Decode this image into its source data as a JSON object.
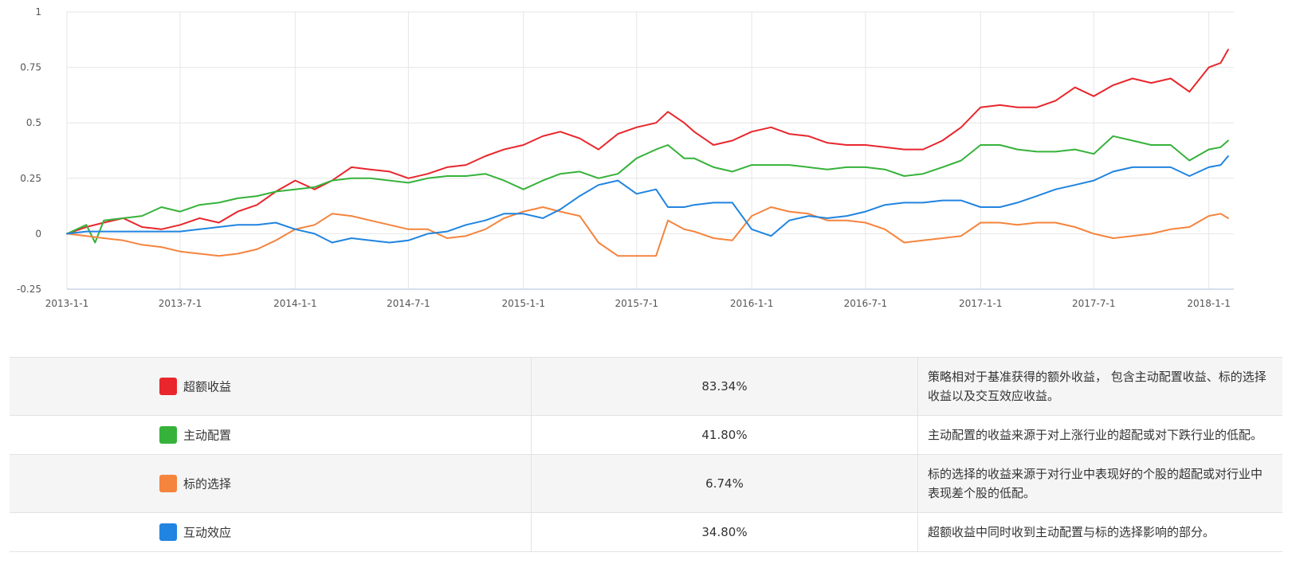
{
  "chart_data": {
    "type": "line",
    "x_ticks": [
      "2013-1-1",
      "2013-7-1",
      "2014-1-1",
      "2014-7-1",
      "2015-1-1",
      "2015-7-1",
      "2016-1-1",
      "2016-7-1",
      "2017-1-1",
      "2017-7-1",
      "2018-1-1"
    ],
    "y_ticks": [
      "1",
      "0.75",
      "0.5",
      "0.25",
      "0",
      "-0.25"
    ],
    "ylim": [
      -0.25,
      1
    ],
    "xlim": [
      "2013-01-01",
      "2018-02-10"
    ],
    "grid": true,
    "series": [
      {
        "name": "超额收益",
        "color": "#e8262c",
        "points": [
          [
            "2013-01-01",
            0
          ],
          [
            "2013-02-01",
            0.03
          ],
          [
            "2013-03-01",
            0.05
          ],
          [
            "2013-04-01",
            0.07
          ],
          [
            "2013-05-01",
            0.03
          ],
          [
            "2013-06-01",
            0.02
          ],
          [
            "2013-07-01",
            0.04
          ],
          [
            "2013-08-01",
            0.07
          ],
          [
            "2013-09-01",
            0.05
          ],
          [
            "2013-10-01",
            0.1
          ],
          [
            "2013-11-01",
            0.13
          ],
          [
            "2013-12-01",
            0.19
          ],
          [
            "2014-01-01",
            0.24
          ],
          [
            "2014-02-01",
            0.2
          ],
          [
            "2014-03-01",
            0.24
          ],
          [
            "2014-04-01",
            0.3
          ],
          [
            "2014-05-01",
            0.29
          ],
          [
            "2014-06-01",
            0.28
          ],
          [
            "2014-07-01",
            0.25
          ],
          [
            "2014-08-01",
            0.27
          ],
          [
            "2014-09-01",
            0.3
          ],
          [
            "2014-10-01",
            0.31
          ],
          [
            "2014-11-01",
            0.35
          ],
          [
            "2014-12-01",
            0.38
          ],
          [
            "2015-01-01",
            0.4
          ],
          [
            "2015-02-01",
            0.44
          ],
          [
            "2015-03-01",
            0.46
          ],
          [
            "2015-04-01",
            0.43
          ],
          [
            "2015-05-01",
            0.38
          ],
          [
            "2015-06-01",
            0.45
          ],
          [
            "2015-07-01",
            0.48
          ],
          [
            "2015-08-01",
            0.5
          ],
          [
            "2015-08-20",
            0.55
          ],
          [
            "2015-09-15",
            0.5
          ],
          [
            "2015-10-01",
            0.46
          ],
          [
            "2015-11-01",
            0.4
          ],
          [
            "2015-12-01",
            0.42
          ],
          [
            "2016-01-01",
            0.46
          ],
          [
            "2016-02-01",
            0.48
          ],
          [
            "2016-03-01",
            0.45
          ],
          [
            "2016-04-01",
            0.44
          ],
          [
            "2016-05-01",
            0.41
          ],
          [
            "2016-06-01",
            0.4
          ],
          [
            "2016-07-01",
            0.4
          ],
          [
            "2016-08-01",
            0.39
          ],
          [
            "2016-09-01",
            0.38
          ],
          [
            "2016-10-01",
            0.38
          ],
          [
            "2016-11-01",
            0.42
          ],
          [
            "2016-12-01",
            0.48
          ],
          [
            "2017-01-01",
            0.57
          ],
          [
            "2017-02-01",
            0.58
          ],
          [
            "2017-03-01",
            0.57
          ],
          [
            "2017-04-01",
            0.57
          ],
          [
            "2017-05-01",
            0.6
          ],
          [
            "2017-06-01",
            0.66
          ],
          [
            "2017-07-01",
            0.62
          ],
          [
            "2017-08-01",
            0.67
          ],
          [
            "2017-09-01",
            0.7
          ],
          [
            "2017-10-01",
            0.68
          ],
          [
            "2017-11-01",
            0.7
          ],
          [
            "2017-12-01",
            0.64
          ],
          [
            "2018-01-01",
            0.75
          ],
          [
            "2018-01-20",
            0.77
          ],
          [
            "2018-02-01",
            0.83
          ]
        ]
      },
      {
        "name": "主动配置",
        "color": "#36b23a",
        "points": [
          [
            "2013-01-01",
            0
          ],
          [
            "2013-02-01",
            0.04
          ],
          [
            "2013-02-15",
            -0.04
          ],
          [
            "2013-03-01",
            0.06
          ],
          [
            "2013-04-01",
            0.07
          ],
          [
            "2013-05-01",
            0.08
          ],
          [
            "2013-06-01",
            0.12
          ],
          [
            "2013-07-01",
            0.1
          ],
          [
            "2013-08-01",
            0.13
          ],
          [
            "2013-09-01",
            0.14
          ],
          [
            "2013-10-01",
            0.16
          ],
          [
            "2013-11-01",
            0.17
          ],
          [
            "2013-12-01",
            0.19
          ],
          [
            "2014-01-01",
            0.2
          ],
          [
            "2014-02-01",
            0.21
          ],
          [
            "2014-03-01",
            0.24
          ],
          [
            "2014-04-01",
            0.25
          ],
          [
            "2014-05-01",
            0.25
          ],
          [
            "2014-06-01",
            0.24
          ],
          [
            "2014-07-01",
            0.23
          ],
          [
            "2014-08-01",
            0.25
          ],
          [
            "2014-09-01",
            0.26
          ],
          [
            "2014-10-01",
            0.26
          ],
          [
            "2014-11-01",
            0.27
          ],
          [
            "2014-12-01",
            0.24
          ],
          [
            "2015-01-01",
            0.2
          ],
          [
            "2015-02-01",
            0.24
          ],
          [
            "2015-03-01",
            0.27
          ],
          [
            "2015-04-01",
            0.28
          ],
          [
            "2015-05-01",
            0.25
          ],
          [
            "2015-06-01",
            0.27
          ],
          [
            "2015-07-01",
            0.34
          ],
          [
            "2015-08-01",
            0.38
          ],
          [
            "2015-08-20",
            0.4
          ],
          [
            "2015-09-15",
            0.34
          ],
          [
            "2015-10-01",
            0.34
          ],
          [
            "2015-11-01",
            0.3
          ],
          [
            "2015-12-01",
            0.28
          ],
          [
            "2016-01-01",
            0.31
          ],
          [
            "2016-02-01",
            0.31
          ],
          [
            "2016-03-01",
            0.31
          ],
          [
            "2016-04-01",
            0.3
          ],
          [
            "2016-05-01",
            0.29
          ],
          [
            "2016-06-01",
            0.3
          ],
          [
            "2016-07-01",
            0.3
          ],
          [
            "2016-08-01",
            0.29
          ],
          [
            "2016-09-01",
            0.26
          ],
          [
            "2016-10-01",
            0.27
          ],
          [
            "2016-11-01",
            0.3
          ],
          [
            "2016-12-01",
            0.33
          ],
          [
            "2017-01-01",
            0.4
          ],
          [
            "2017-02-01",
            0.4
          ],
          [
            "2017-03-01",
            0.38
          ],
          [
            "2017-04-01",
            0.37
          ],
          [
            "2017-05-01",
            0.37
          ],
          [
            "2017-06-01",
            0.38
          ],
          [
            "2017-07-01",
            0.36
          ],
          [
            "2017-08-01",
            0.44
          ],
          [
            "2017-09-01",
            0.42
          ],
          [
            "2017-10-01",
            0.4
          ],
          [
            "2017-11-01",
            0.4
          ],
          [
            "2017-12-01",
            0.33
          ],
          [
            "2018-01-01",
            0.38
          ],
          [
            "2018-01-20",
            0.39
          ],
          [
            "2018-02-01",
            0.42
          ]
        ]
      },
      {
        "name": "标的选择",
        "color": "#f5843d",
        "points": [
          [
            "2013-01-01",
            0
          ],
          [
            "2013-02-01",
            -0.01
          ],
          [
            "2013-03-01",
            -0.02
          ],
          [
            "2013-04-01",
            -0.03
          ],
          [
            "2013-05-01",
            -0.05
          ],
          [
            "2013-06-01",
            -0.06
          ],
          [
            "2013-07-01",
            -0.08
          ],
          [
            "2013-08-01",
            -0.09
          ],
          [
            "2013-09-01",
            -0.1
          ],
          [
            "2013-10-01",
            -0.09
          ],
          [
            "2013-11-01",
            -0.07
          ],
          [
            "2013-12-01",
            -0.03
          ],
          [
            "2014-01-01",
            0.02
          ],
          [
            "2014-02-01",
            0.04
          ],
          [
            "2014-03-01",
            0.09
          ],
          [
            "2014-04-01",
            0.08
          ],
          [
            "2014-05-01",
            0.06
          ],
          [
            "2014-06-01",
            0.04
          ],
          [
            "2014-07-01",
            0.02
          ],
          [
            "2014-08-01",
            0.02
          ],
          [
            "2014-09-01",
            -0.02
          ],
          [
            "2014-10-01",
            -0.01
          ],
          [
            "2014-11-01",
            0.02
          ],
          [
            "2014-12-01",
            0.07
          ],
          [
            "2015-01-01",
            0.1
          ],
          [
            "2015-02-01",
            0.12
          ],
          [
            "2015-03-01",
            0.1
          ],
          [
            "2015-04-01",
            0.08
          ],
          [
            "2015-05-01",
            -0.04
          ],
          [
            "2015-06-01",
            -0.1
          ],
          [
            "2015-07-01",
            -0.1
          ],
          [
            "2015-08-01",
            -0.1
          ],
          [
            "2015-08-20",
            0.06
          ],
          [
            "2015-09-15",
            0.02
          ],
          [
            "2015-10-01",
            0.01
          ],
          [
            "2015-11-01",
            -0.02
          ],
          [
            "2015-12-01",
            -0.03
          ],
          [
            "2016-01-01",
            0.08
          ],
          [
            "2016-02-01",
            0.12
          ],
          [
            "2016-03-01",
            0.1
          ],
          [
            "2016-04-01",
            0.09
          ],
          [
            "2016-05-01",
            0.06
          ],
          [
            "2016-06-01",
            0.06
          ],
          [
            "2016-07-01",
            0.05
          ],
          [
            "2016-08-01",
            0.02
          ],
          [
            "2016-09-01",
            -0.04
          ],
          [
            "2016-10-01",
            -0.03
          ],
          [
            "2016-11-01",
            -0.02
          ],
          [
            "2016-12-01",
            -0.01
          ],
          [
            "2017-01-01",
            0.05
          ],
          [
            "2017-02-01",
            0.05
          ],
          [
            "2017-03-01",
            0.04
          ],
          [
            "2017-04-01",
            0.05
          ],
          [
            "2017-05-01",
            0.05
          ],
          [
            "2017-06-01",
            0.03
          ],
          [
            "2017-07-01",
            0
          ],
          [
            "2017-08-01",
            -0.02
          ],
          [
            "2017-09-01",
            -0.01
          ],
          [
            "2017-10-01",
            0
          ],
          [
            "2017-11-01",
            0.02
          ],
          [
            "2017-12-01",
            0.03
          ],
          [
            "2018-01-01",
            0.08
          ],
          [
            "2018-01-20",
            0.09
          ],
          [
            "2018-02-01",
            0.07
          ]
        ]
      },
      {
        "name": "互动效应",
        "color": "#2084e0",
        "points": [
          [
            "2013-01-01",
            0
          ],
          [
            "2013-02-01",
            0.01
          ],
          [
            "2013-03-01",
            0.01
          ],
          [
            "2013-04-01",
            0.01
          ],
          [
            "2013-05-01",
            0.01
          ],
          [
            "2013-06-01",
            0.01
          ],
          [
            "2013-07-01",
            0.01
          ],
          [
            "2013-08-01",
            0.02
          ],
          [
            "2013-09-01",
            0.03
          ],
          [
            "2013-10-01",
            0.04
          ],
          [
            "2013-11-01",
            0.04
          ],
          [
            "2013-12-01",
            0.05
          ],
          [
            "2014-01-01",
            0.02
          ],
          [
            "2014-02-01",
            0.0
          ],
          [
            "2014-03-01",
            -0.04
          ],
          [
            "2014-04-01",
            -0.02
          ],
          [
            "2014-05-01",
            -0.03
          ],
          [
            "2014-06-01",
            -0.04
          ],
          [
            "2014-07-01",
            -0.03
          ],
          [
            "2014-08-01",
            0
          ],
          [
            "2014-09-01",
            0.01
          ],
          [
            "2014-10-01",
            0.04
          ],
          [
            "2014-11-01",
            0.06
          ],
          [
            "2014-12-01",
            0.09
          ],
          [
            "2015-01-01",
            0.09
          ],
          [
            "2015-02-01",
            0.07
          ],
          [
            "2015-03-01",
            0.11
          ],
          [
            "2015-04-01",
            0.17
          ],
          [
            "2015-05-01",
            0.22
          ],
          [
            "2015-06-01",
            0.24
          ],
          [
            "2015-07-01",
            0.18
          ],
          [
            "2015-08-01",
            0.2
          ],
          [
            "2015-08-20",
            0.12
          ],
          [
            "2015-09-15",
            0.12
          ],
          [
            "2015-10-01",
            0.13
          ],
          [
            "2015-11-01",
            0.14
          ],
          [
            "2015-12-01",
            0.14
          ],
          [
            "2016-01-01",
            0.02
          ],
          [
            "2016-02-01",
            -0.01
          ],
          [
            "2016-03-01",
            0.06
          ],
          [
            "2016-04-01",
            0.08
          ],
          [
            "2016-05-01",
            0.07
          ],
          [
            "2016-06-01",
            0.08
          ],
          [
            "2016-07-01",
            0.1
          ],
          [
            "2016-08-01",
            0.13
          ],
          [
            "2016-09-01",
            0.14
          ],
          [
            "2016-10-01",
            0.14
          ],
          [
            "2016-11-01",
            0.15
          ],
          [
            "2016-12-01",
            0.15
          ],
          [
            "2017-01-01",
            0.12
          ],
          [
            "2017-02-01",
            0.12
          ],
          [
            "2017-03-01",
            0.14
          ],
          [
            "2017-04-01",
            0.17
          ],
          [
            "2017-05-01",
            0.2
          ],
          [
            "2017-06-01",
            0.22
          ],
          [
            "2017-07-01",
            0.24
          ],
          [
            "2017-08-01",
            0.28
          ],
          [
            "2017-09-01",
            0.3
          ],
          [
            "2017-10-01",
            0.3
          ],
          [
            "2017-11-01",
            0.3
          ],
          [
            "2017-12-01",
            0.26
          ],
          [
            "2018-01-01",
            0.3
          ],
          [
            "2018-01-20",
            0.31
          ],
          [
            "2018-02-01",
            0.35
          ]
        ]
      }
    ]
  },
  "table": {
    "rows": [
      {
        "name": "超额收益",
        "color": "#e8262c",
        "value": "83.34%",
        "desc": "策略相对于基准获得的额外收益， 包含主动配置收益、标的选择收益以及交互效应收益。"
      },
      {
        "name": "主动配置",
        "color": "#36b23a",
        "value": "41.80%",
        "desc": "主动配置的收益来源于对上涨行业的超配或对下跌行业的低配。"
      },
      {
        "name": "标的选择",
        "color": "#f5843d",
        "value": "6.74%",
        "desc": "标的选择的收益来源于对行业中表现好的个股的超配或对行业中表现差个股的低配。"
      },
      {
        "name": "互动效应",
        "color": "#2084e0",
        "value": "34.80%",
        "desc": "超额收益中同时收到主动配置与标的选择影响的部分。"
      }
    ]
  }
}
